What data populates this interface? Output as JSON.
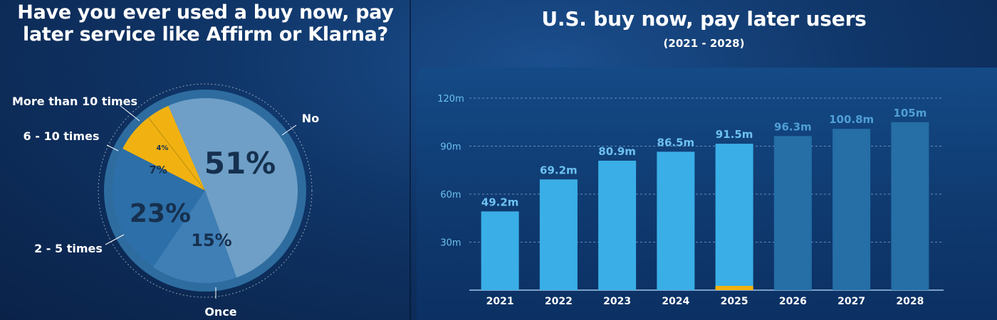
{
  "pie": {
    "title_line1": "Have you ever used a buy now, pay",
    "title_line2": "later service like Affirm or Klarna?"
  },
  "bar": {
    "title": "U.S. buy now, pay later users",
    "subtitle": "(2021 - 2028)"
  },
  "colors": {
    "pie_no": "#6f9fc6",
    "pie_once": "#3f7fb6",
    "pie_2_5": "#2d6fa8",
    "pie_yellow": "#f1b211",
    "bar_actual": "#3aaee6",
    "bar_forecast": "#256ea6",
    "bar_marker": "#f1b211",
    "value_label": "#6cc1f0"
  },
  "chart_data": [
    {
      "type": "pie",
      "title": "Have you ever used a buy now, pay later service like Affirm or Klarna?",
      "slices": [
        {
          "label": "No",
          "value": 51,
          "display": "51%"
        },
        {
          "label": "Once",
          "value": 15,
          "display": "15%"
        },
        {
          "label": "2 - 5 times",
          "value": 23,
          "display": "23%"
        },
        {
          "label": "6 - 10 times",
          "value": 7,
          "display": "7%"
        },
        {
          "label": "More than 10 times",
          "value": 4,
          "display": "4%"
        }
      ]
    },
    {
      "type": "bar",
      "title": "U.S. buy now, pay later users",
      "subtitle": "(2021 - 2028)",
      "categories": [
        "2021",
        "2022",
        "2023",
        "2024",
        "2025",
        "2026",
        "2027",
        "2028"
      ],
      "values": [
        49.2,
        69.2,
        80.9,
        86.5,
        91.5,
        96.3,
        100.8,
        105
      ],
      "value_labels": [
        "49.2m",
        "69.2m",
        "80.9m",
        "86.5m",
        "91.5m",
        "96.3m",
        "100.8m",
        "105m"
      ],
      "forecast": [
        false,
        false,
        false,
        false,
        false,
        true,
        true,
        true
      ],
      "current_year_marker": "2025",
      "ylim": [
        0,
        120
      ],
      "yticks": [
        30,
        60,
        90,
        120
      ],
      "ytick_labels": [
        "30m",
        "60m",
        "90m",
        "120m"
      ],
      "grid": true
    }
  ]
}
